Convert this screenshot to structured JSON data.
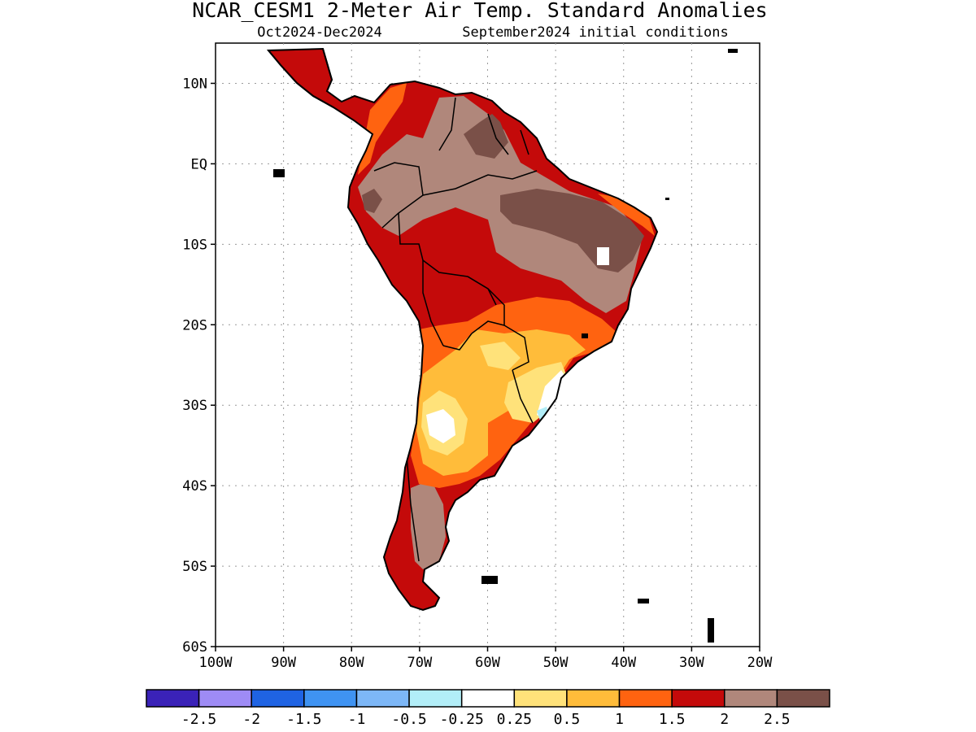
{
  "header": {
    "title": "NCAR_CESM1 2-Meter Air Temp. Standard Anomalies",
    "period": "Oct2024-Dec2024",
    "init": "September2024 initial conditions"
  },
  "axes": {
    "lat_labels": [
      "10N",
      "EQ",
      "10S",
      "20S",
      "30S",
      "40S",
      "50S",
      "60S"
    ],
    "lon_labels": [
      "100W",
      "90W",
      "80W",
      "70W",
      "60W",
      "50W",
      "40W",
      "30W",
      "20W"
    ]
  },
  "colorbar": {
    "colors": [
      "#3a22b8",
      "#9e8bf5",
      "#1f63e3",
      "#3f93f2",
      "#7db7f7",
      "#b2eef8",
      "#ffffff",
      "#ffe27a",
      "#ffbc3a",
      "#ff6310",
      "#c40a0a",
      "#b0877b",
      "#7a5048"
    ],
    "labels": [
      "-2.5",
      "-2",
      "-1.5",
      "-1",
      "-0.5",
      "-0.25",
      "0.25",
      "0.5",
      "1",
      "1.5",
      "2",
      "2.5"
    ]
  },
  "map": {
    "region": "South America",
    "lat_range": [
      -60,
      15
    ],
    "lon_range": [
      -100,
      -20
    ],
    "palette": {
      "land_base": "#c40a0a",
      "very_high": "#7a5048",
      "high": "#b0877b",
      "mid": "#ff6310",
      "low": "#ffbc3a",
      "lowest": "#ffe27a",
      "neutral": "#ffffff",
      "cool": "#b2eef8",
      "coast": "#000000"
    }
  }
}
